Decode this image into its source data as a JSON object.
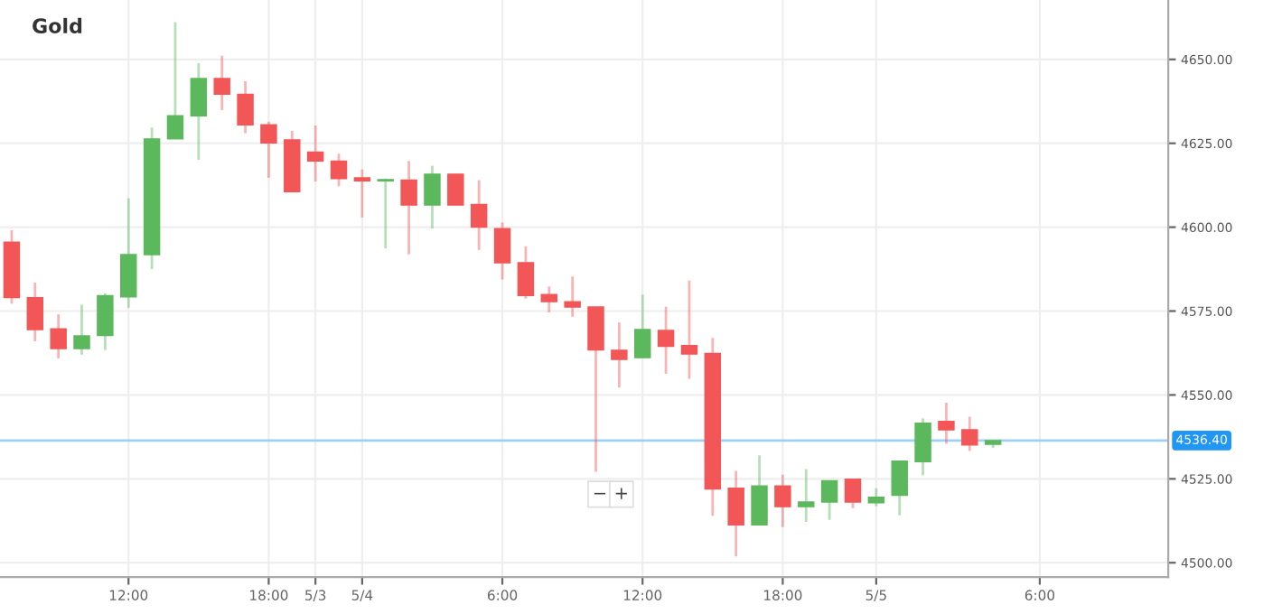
{
  "chart_data": {
    "type": "candlestick",
    "title": "Gold",
    "categories": [
      null,
      null,
      null,
      null,
      null,
      "12:00",
      null,
      null,
      null,
      null,
      null,
      "18:00",
      null,
      "5/3",
      null,
      "5/4",
      null,
      null,
      null,
      null,
      null,
      "6:00",
      null,
      null,
      null,
      null,
      null,
      "12:00",
      null,
      null,
      null,
      null,
      null,
      "18:00",
      null,
      null,
      null,
      "5/5",
      null,
      null,
      null,
      null,
      null,
      null,
      "6:00",
      null,
      null,
      null,
      null,
      null
    ],
    "ohlc": [
      [
        4595.5,
        4599.1,
        4577.2,
        4579.0
      ],
      [
        4579.0,
        4583.5,
        4566.0,
        4569.5
      ],
      [
        4569.7,
        4574.0,
        4560.9,
        4563.8
      ],
      [
        4563.8,
        4576.9,
        4562.0,
        4567.6
      ],
      [
        4567.7,
        4580.3,
        4563.4,
        4579.6
      ],
      [
        4579.2,
        4608.6,
        4576.0,
        4591.8
      ],
      [
        4591.8,
        4629.7,
        4587.5,
        4626.3
      ],
      [
        4626.3,
        4661.1,
        4626.3,
        4633.2
      ],
      [
        4633.2,
        4648.9,
        4620.1,
        4644.3
      ],
      [
        4644.3,
        4651.1,
        4634.9,
        4639.6
      ],
      [
        4639.6,
        4643.5,
        4628.0,
        4630.5
      ],
      [
        4630.5,
        4631.4,
        4614.7,
        4625.1
      ],
      [
        4626.0,
        4628.7,
        4610.6,
        4610.6
      ],
      [
        4622.4,
        4630.3,
        4613.6,
        4619.7
      ],
      [
        4619.7,
        4621.9,
        4612.2,
        4614.5
      ],
      [
        4614.7,
        4617.2,
        4602.9,
        4613.8
      ],
      [
        4613.8,
        4614.5,
        4593.7,
        4614.2
      ],
      [
        4614.0,
        4619.7,
        4591.9,
        4606.6
      ],
      [
        4606.6,
        4618.3,
        4599.6,
        4615.8
      ],
      [
        4615.8,
        4615.8,
        4606.6,
        4606.6
      ],
      [
        4606.8,
        4614.0,
        4593.2,
        4600.0
      ],
      [
        4599.6,
        4601.4,
        4584.4,
        4589.4
      ],
      [
        4589.4,
        4594.3,
        4578.7,
        4579.6
      ],
      [
        4579.9,
        4582.3,
        4574.6,
        4577.8
      ],
      [
        4577.8,
        4585.3,
        4573.3,
        4576.2
      ],
      [
        4576.2,
        4576.2,
        4527.1,
        4563.4
      ],
      [
        4563.3,
        4571.6,
        4552.2,
        4560.6
      ],
      [
        4561.1,
        4579.9,
        4561.1,
        4569.5
      ],
      [
        4569.2,
        4576.3,
        4556.3,
        4564.5
      ],
      [
        4564.7,
        4584.1,
        4554.8,
        4562.2
      ],
      [
        4562.4,
        4567.0,
        4514.0,
        4522.0
      ],
      [
        4522.2,
        4527.4,
        4501.9,
        4511.3
      ],
      [
        4511.3,
        4532.0,
        4511.3,
        4522.9
      ],
      [
        4522.9,
        4526.2,
        4510.6,
        4516.7
      ],
      [
        4516.7,
        4527.9,
        4512.2,
        4518.1
      ],
      [
        4518.1,
        4524.4,
        4512.8,
        4524.4
      ],
      [
        4524.9,
        4524.9,
        4516.3,
        4518.1
      ],
      [
        4517.9,
        4522.2,
        4516.9,
        4519.5
      ],
      [
        4520.1,
        4530.3,
        4514.1,
        4530.3
      ],
      [
        4530.1,
        4543.0,
        4526.1,
        4541.6
      ],
      [
        4542.1,
        4547.7,
        4535.5,
        4539.6
      ],
      [
        4539.6,
        4543.5,
        4533.3,
        4535.1
      ],
      [
        4535.3,
        4536.4,
        4534.2,
        4536.4
      ],
      null,
      null,
      null,
      null,
      null,
      null,
      null
    ],
    "colors": [
      "#f25656",
      "#f25656",
      "#f25656",
      "#5cb85c",
      "#5cb85c",
      "#5cb85c",
      "#5cb85c",
      "#5cb85c",
      "#5cb85c",
      "#f25656",
      "#f25656",
      "#f25656",
      "#f25656",
      "#f25656",
      "#f25656",
      "#f25656",
      "#5cb85c",
      "#f25656",
      "#5cb85c",
      "#f25656",
      "#f25656",
      "#f25656",
      "#f25656",
      "#f25656",
      "#f25656",
      "#f25656",
      "#f25656",
      "#5cb85c",
      "#f25656",
      "#f25656",
      "#f25656",
      "#f25656",
      "#5cb85c",
      "#f25656",
      "#5cb85c",
      "#5cb85c",
      "#f25656",
      "#5cb85c",
      "#5cb85c",
      "#5cb85c",
      "#f25656",
      "#f25656",
      "#5cb85c",
      null,
      null,
      null,
      null,
      null,
      null,
      null
    ],
    "ylim": [
      4495.7,
      4667.7
    ],
    "yticks": [
      {
        "value": 4500,
        "label": "4500.00"
      },
      {
        "value": 4525,
        "label": "4525.00"
      },
      {
        "value": 4550,
        "label": "4550.00"
      },
      {
        "value": 4575,
        "label": "4575.00"
      },
      {
        "value": 4600,
        "label": "4600.00"
      },
      {
        "value": 4625,
        "label": "4625.00"
      },
      {
        "value": 4650,
        "label": "4650.00"
      }
    ],
    "grid": true,
    "ref_lines": [
      {
        "axis": "y",
        "value": 4536.4,
        "label": "4536.40",
        "color": "#9fd0f7"
      }
    ],
    "annotations": [
      "−",
      "+"
    ]
  }
}
